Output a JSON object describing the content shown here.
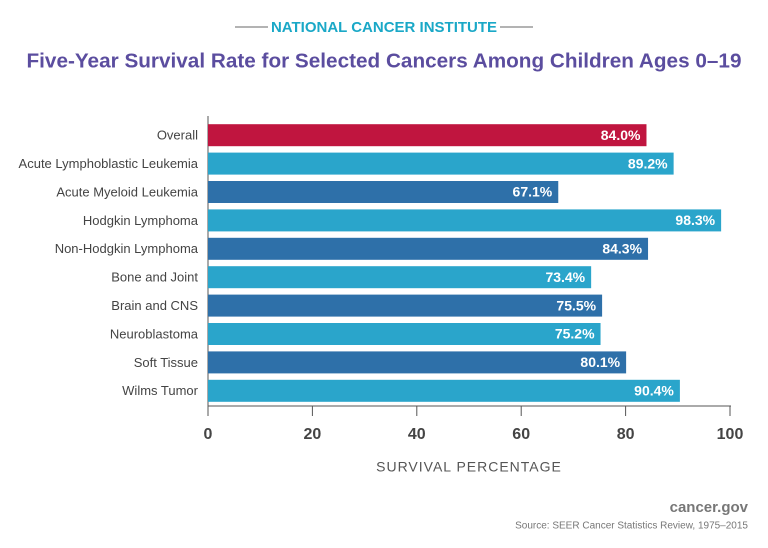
{
  "chart_data": {
    "type": "hbar",
    "header": "NATIONAL CANCER INSTITUTE",
    "title": "Five-Year Survival Rate for Selected Cancers Among Children Ages 0–19",
    "categories": [
      "Overall",
      "Acute Lymphoblastic Leukemia",
      "Acute Myeloid Leukemia",
      "Hodgkin Lymphoma",
      "Non-Hodgkin Lymphoma",
      "Bone and Joint",
      "Brain and CNS",
      "Neuroblastoma",
      "Soft Tissue",
      "Wilms Tumor"
    ],
    "values": [
      84.0,
      89.2,
      67.1,
      98.3,
      84.3,
      73.4,
      75.5,
      75.2,
      80.1,
      90.4
    ],
    "value_labels": [
      "84.0%",
      "89.2%",
      "67.1%",
      "98.3%",
      "84.3%",
      "73.4%",
      "75.5%",
      "75.2%",
      "80.1%",
      "90.4%"
    ],
    "colors": [
      "#c0153f",
      "#2aa5cb",
      "#2e70a9",
      "#2aa5cb",
      "#2e70a9",
      "#2aa5cb",
      "#2e70a9",
      "#2aa5cb",
      "#2e70a9",
      "#2aa5cb"
    ],
    "xlabel": "SURVIVAL PERCENTAGE",
    "xlim": [
      0,
      100
    ],
    "xticks": [
      0,
      20,
      40,
      60,
      80,
      100
    ],
    "footer": "cancer.gov",
    "source": "Source:  SEER Cancer Statistics Review, 1975–2015"
  }
}
